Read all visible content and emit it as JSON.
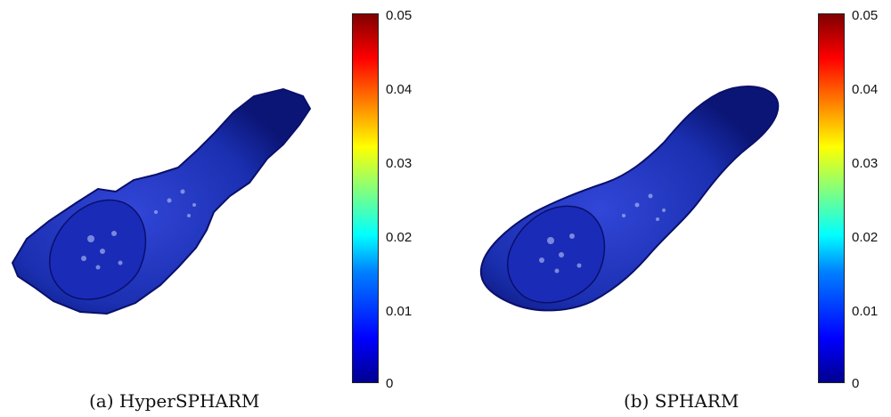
{
  "panels": [
    {
      "caption": "(a) HyperSPHARM",
      "colorbar": {
        "ticks": [
          "0.05",
          "0.04",
          "0.03",
          "0.02",
          "0.01",
          "0"
        ],
        "range": [
          0,
          0.05
        ],
        "colormap": "jet"
      }
    },
    {
      "caption": "(b) SPHARM",
      "colorbar": {
        "ticks": [
          "0.05",
          "0.04",
          "0.03",
          "0.02",
          "0.01",
          "0"
        ],
        "range": [
          0,
          0.05
        ],
        "colormap": "jet"
      }
    }
  ],
  "colors": {
    "surface": "#1a2fb0",
    "surface_dark": "#0a0f6a",
    "highlight": "#c8d4ff"
  }
}
